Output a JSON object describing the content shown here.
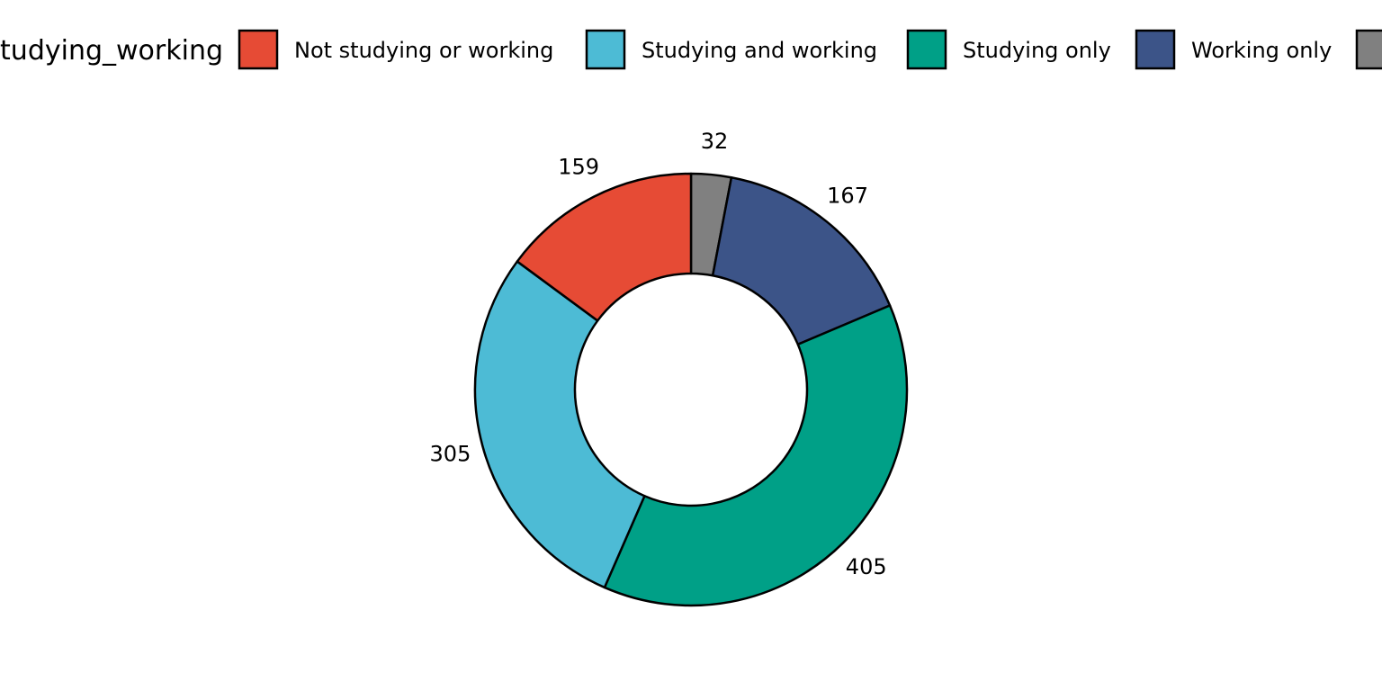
{
  "chart_data": {
    "type": "pie",
    "variant": "donut",
    "legend_title": "Studying_working",
    "legend_position": "top",
    "direction": "clockwise from 12 o'clock, in reverse legend order",
    "slices": [
      {
        "label": "Not studying or working",
        "value": 159,
        "color": "#E64B35"
      },
      {
        "label": "Studying and working",
        "value": 305,
        "color": "#4DBBD5"
      },
      {
        "label": "Studying only",
        "value": 405,
        "color": "#00A087"
      },
      {
        "label": "Working only",
        "value": 167,
        "color": "#3C5488"
      },
      {
        "label": "",
        "value": 32,
        "color": "#808080"
      }
    ],
    "slice_outline_color": "#000000",
    "grid": false
  }
}
